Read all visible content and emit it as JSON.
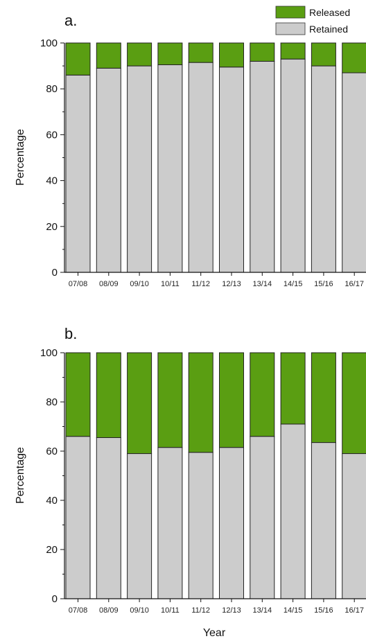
{
  "legend": [
    {
      "label": "Released",
      "color": "#5a9e12"
    },
    {
      "label": "Retained",
      "color": "#cccccc"
    }
  ],
  "chart_data": [
    {
      "type": "bar",
      "stacked": true,
      "title": "a.",
      "ylabel": "Percentage",
      "xlabel": "",
      "ylim": [
        0,
        100
      ],
      "yticks": [
        0,
        20,
        40,
        60,
        80,
        100
      ],
      "categories": [
        "07/08",
        "08/09",
        "09/10",
        "10/11",
        "11/12",
        "12/13",
        "13/14",
        "14/15",
        "15/16",
        "16/17"
      ],
      "series": [
        {
          "name": "Retained",
          "color": "#cccccc",
          "values": [
            86,
            89,
            90,
            90.5,
            91.5,
            89.5,
            92,
            93,
            90,
            87
          ]
        },
        {
          "name": "Released",
          "color": "#5a9e12",
          "values": [
            14,
            11,
            10,
            9.5,
            8.5,
            10.5,
            8,
            7,
            10,
            13
          ]
        }
      ]
    },
    {
      "type": "bar",
      "stacked": true,
      "title": "b.",
      "ylabel": "Percentage",
      "xlabel": "Year",
      "ylim": [
        0,
        100
      ],
      "yticks": [
        0,
        20,
        40,
        60,
        80,
        100
      ],
      "categories": [
        "07/08",
        "08/09",
        "09/10",
        "10/11",
        "11/12",
        "12/13",
        "13/14",
        "14/15",
        "15/16",
        "16/17"
      ],
      "series": [
        {
          "name": "Retained",
          "color": "#cccccc",
          "values": [
            66,
            65.5,
            59,
            61.5,
            59.5,
            61.5,
            66,
            71,
            63.5,
            59
          ]
        },
        {
          "name": "Released",
          "color": "#5a9e12",
          "values": [
            34,
            34.5,
            41,
            38.5,
            40.5,
            38.5,
            34,
            29,
            36.5,
            41
          ]
        }
      ]
    }
  ]
}
